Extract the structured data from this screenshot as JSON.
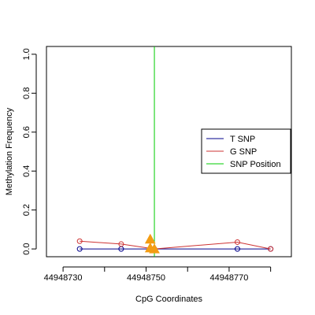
{
  "chart_data": {
    "type": "line",
    "title": "",
    "xlabel": "CpG Coordinates",
    "ylabel": "Methylation Frequency",
    "xlim": [
      44948726,
      44948785
    ],
    "ylim": [
      -0.04,
      1.04
    ],
    "x_ticks": [
      44948730,
      44948750,
      44948770
    ],
    "x_tick_labels": [
      "44948730",
      "44948750",
      "44948770"
    ],
    "x_minor_ticks": [
      44948740,
      44948760,
      44948780
    ],
    "y_ticks": [
      0.0,
      0.2,
      0.4,
      0.6,
      0.8,
      1.0
    ],
    "y_tick_labels": [
      "0.0",
      "0.2",
      "0.4",
      "0.6",
      "0.8",
      "1.0"
    ],
    "grid": false,
    "legend_position": "right",
    "series": [
      {
        "name": "T SNP",
        "color": "#00008b",
        "x": [
          44948734,
          44948744,
          44948752,
          44948772,
          44948780
        ],
        "y": [
          0.0,
          0.0,
          0.0,
          0.0,
          0.0
        ]
      },
      {
        "name": "G SNP",
        "color": "#cd3333",
        "x": [
          44948734,
          44948744,
          44948752,
          44948772,
          44948780
        ],
        "y": [
          0.04,
          0.025,
          0.0,
          0.035,
          0.0
        ]
      }
    ],
    "snp_position": {
      "name": "SNP Position",
      "color": "#00cc00",
      "x": 44948752
    },
    "snp_markers": {
      "color": "#f39c12",
      "points": [
        {
          "x": 44948751,
          "y": 0.05
        },
        {
          "x": 44948751,
          "y": 0.005
        },
        {
          "x": 44948752,
          "y": 0.0
        }
      ]
    }
  }
}
